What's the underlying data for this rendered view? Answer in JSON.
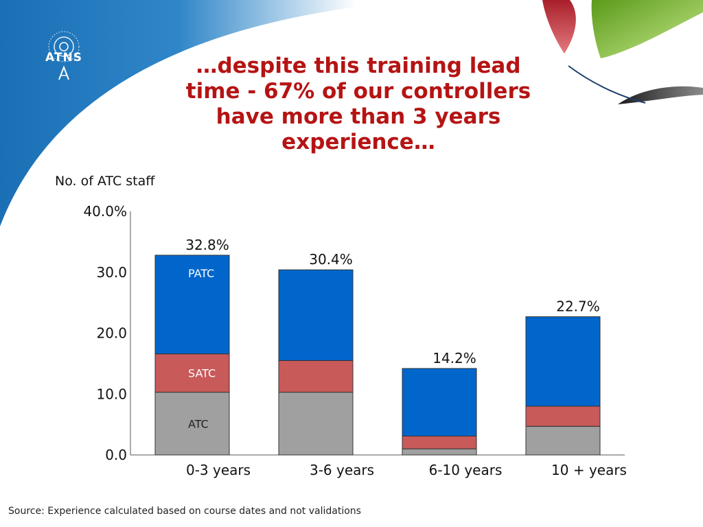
{
  "slide": {
    "logo_text": "ATNS",
    "title_lines": [
      "…despite this training lead",
      "time - 67% of our controllers",
      "have more than 3 years",
      "experience…"
    ],
    "source": "Source: Experience calculated based on course dates and not validations"
  },
  "colors": {
    "PATC": "#0066cc",
    "SATC": "#c85a5a",
    "ATC": "#a0a0a0",
    "title": "#b51414"
  },
  "chart_data": {
    "type": "bar",
    "stacked": true,
    "ylabel": "No. of ATC staff",
    "ylim": [
      0,
      40
    ],
    "yticks": [
      0,
      10,
      20,
      30,
      40
    ],
    "ytick_labels": [
      "0.0",
      "10.0",
      "20.0",
      "30.0",
      "40.0%"
    ],
    "categories": [
      "0-3 years",
      "3-6 years",
      "6-10 years",
      "10 + years"
    ],
    "series": [
      {
        "name": "ATC",
        "values": [
          10.3,
          10.3,
          1.0,
          4.7
        ]
      },
      {
        "name": "SATC",
        "values": [
          6.3,
          5.2,
          2.1,
          3.3
        ]
      },
      {
        "name": "PATC",
        "values": [
          16.2,
          14.9,
          11.1,
          14.7
        ]
      }
    ],
    "totals": [
      32.8,
      30.4,
      14.2,
      22.7
    ],
    "total_labels": [
      "32.8%",
      "30.4%",
      "14.2%",
      "22.7%"
    ],
    "inline_labels": [
      "PATC",
      "SATC",
      "ATC"
    ]
  }
}
